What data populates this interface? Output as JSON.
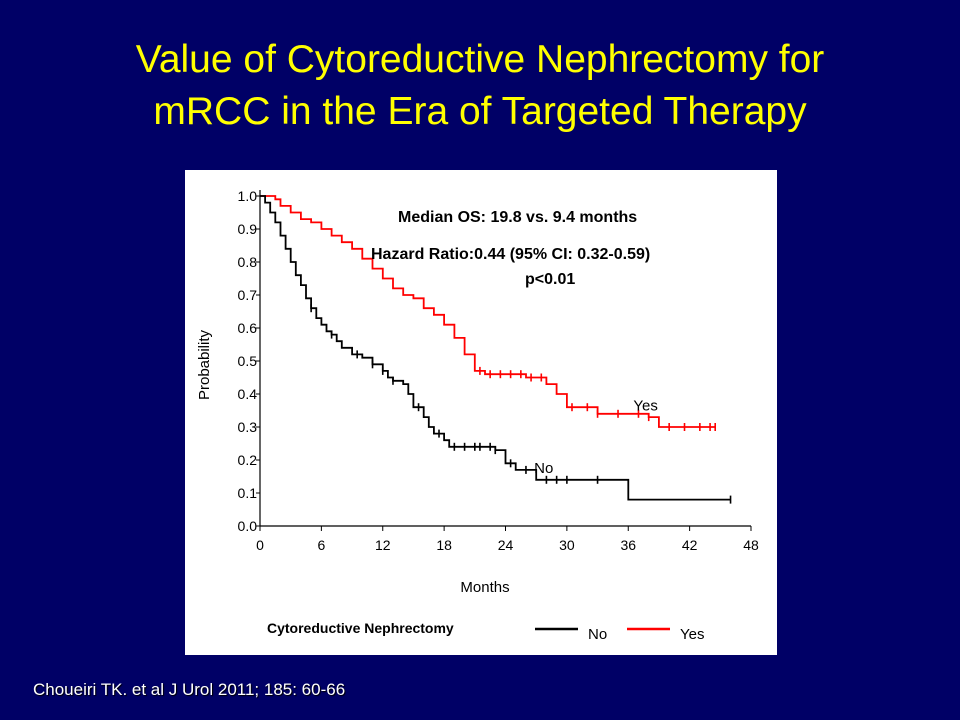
{
  "slide": {
    "title_line1": "Value of Cytoreductive Nephrectomy for",
    "title_line2": "mRCC in the Era of Targeted Therapy",
    "citation": "Choueiri TK. et al J Urol 2011; 185: 60-66"
  },
  "colors": {
    "background": "#000066",
    "title": "#ffff00",
    "yes_curve": "#ff0000",
    "no_curve": "#000000"
  },
  "chart_data": {
    "type": "line",
    "title": "",
    "xlabel": "Months",
    "ylabel": "Probability",
    "xlim": [
      0,
      48
    ],
    "ylim": [
      0,
      1.0
    ],
    "x_ticks": [
      "0",
      "6",
      "12",
      "18",
      "24",
      "30",
      "36",
      "42",
      "48"
    ],
    "y_ticks": [
      "0.0",
      "0.1",
      "0.2",
      "0.3",
      "0.4",
      "0.5",
      "0.6",
      "0.7",
      "0.8",
      "0.9",
      "1.0"
    ],
    "annotations": {
      "median": "Median OS: 19.8 vs. 9.4 months",
      "hazard": "Hazard Ratio:0.44 (95% CI: 0.32-0.59)",
      "pvalue": "p<0.01"
    },
    "legend": {
      "title": "Cytoreductive Nephrectomy",
      "position": "bottom"
    },
    "series": [
      {
        "name": "Yes",
        "color": "#ff0000",
        "label_at": [
          36.5,
          0.35
        ],
        "points": [
          [
            0,
            1.0
          ],
          [
            1.5,
            0.99
          ],
          [
            2,
            0.97
          ],
          [
            3,
            0.95
          ],
          [
            4,
            0.93
          ],
          [
            5,
            0.92
          ],
          [
            6,
            0.9
          ],
          [
            7,
            0.88
          ],
          [
            8,
            0.86
          ],
          [
            9,
            0.84
          ],
          [
            10,
            0.81
          ],
          [
            11,
            0.78
          ],
          [
            12,
            0.75
          ],
          [
            13,
            0.72
          ],
          [
            14,
            0.7
          ],
          [
            15,
            0.69
          ],
          [
            16,
            0.66
          ],
          [
            17,
            0.64
          ],
          [
            18,
            0.61
          ],
          [
            19,
            0.57
          ],
          [
            20,
            0.52
          ],
          [
            21,
            0.47
          ],
          [
            22,
            0.46
          ],
          [
            26,
            0.45
          ],
          [
            28,
            0.43
          ],
          [
            29,
            0.4
          ],
          [
            30,
            0.36
          ],
          [
            33,
            0.34
          ],
          [
            38,
            0.33
          ],
          [
            39,
            0.3
          ],
          [
            44.5,
            0.3
          ]
        ],
        "censor_x": [
          21.5,
          22.5,
          23.5,
          24.5,
          25.5,
          26.5,
          27.5,
          30.5,
          32,
          33,
          35,
          37,
          38,
          40,
          41.5,
          43,
          44,
          44.5
        ]
      },
      {
        "name": "No",
        "color": "#000000",
        "label_at": [
          26.8,
          0.16
        ],
        "points": [
          [
            0,
            1.0
          ],
          [
            0.5,
            0.98
          ],
          [
            1,
            0.95
          ],
          [
            1.5,
            0.92
          ],
          [
            2,
            0.88
          ],
          [
            2.5,
            0.84
          ],
          [
            3,
            0.8
          ],
          [
            3.5,
            0.76
          ],
          [
            4,
            0.73
          ],
          [
            4.5,
            0.69
          ],
          [
            5,
            0.66
          ],
          [
            5.5,
            0.63
          ],
          [
            6,
            0.61
          ],
          [
            6.5,
            0.59
          ],
          [
            7,
            0.58
          ],
          [
            7.5,
            0.56
          ],
          [
            8,
            0.54
          ],
          [
            9,
            0.52
          ],
          [
            10,
            0.51
          ],
          [
            11,
            0.49
          ],
          [
            12,
            0.47
          ],
          [
            12.5,
            0.45
          ],
          [
            13,
            0.44
          ],
          [
            14,
            0.43
          ],
          [
            14.5,
            0.4
          ],
          [
            15,
            0.36
          ],
          [
            16,
            0.33
          ],
          [
            16.5,
            0.3
          ],
          [
            17,
            0.28
          ],
          [
            18,
            0.26
          ],
          [
            18.5,
            0.24
          ],
          [
            23,
            0.23
          ],
          [
            24,
            0.19
          ],
          [
            25,
            0.17
          ],
          [
            27,
            0.14
          ],
          [
            36,
            0.08
          ],
          [
            46,
            0.08
          ]
        ],
        "censor_x": [
          5,
          7,
          9.5,
          11,
          12,
          13,
          15.5,
          17.5,
          19,
          20,
          21,
          21.5,
          22.5,
          23,
          24.5,
          26,
          28,
          29,
          30,
          33,
          46
        ]
      }
    ]
  }
}
